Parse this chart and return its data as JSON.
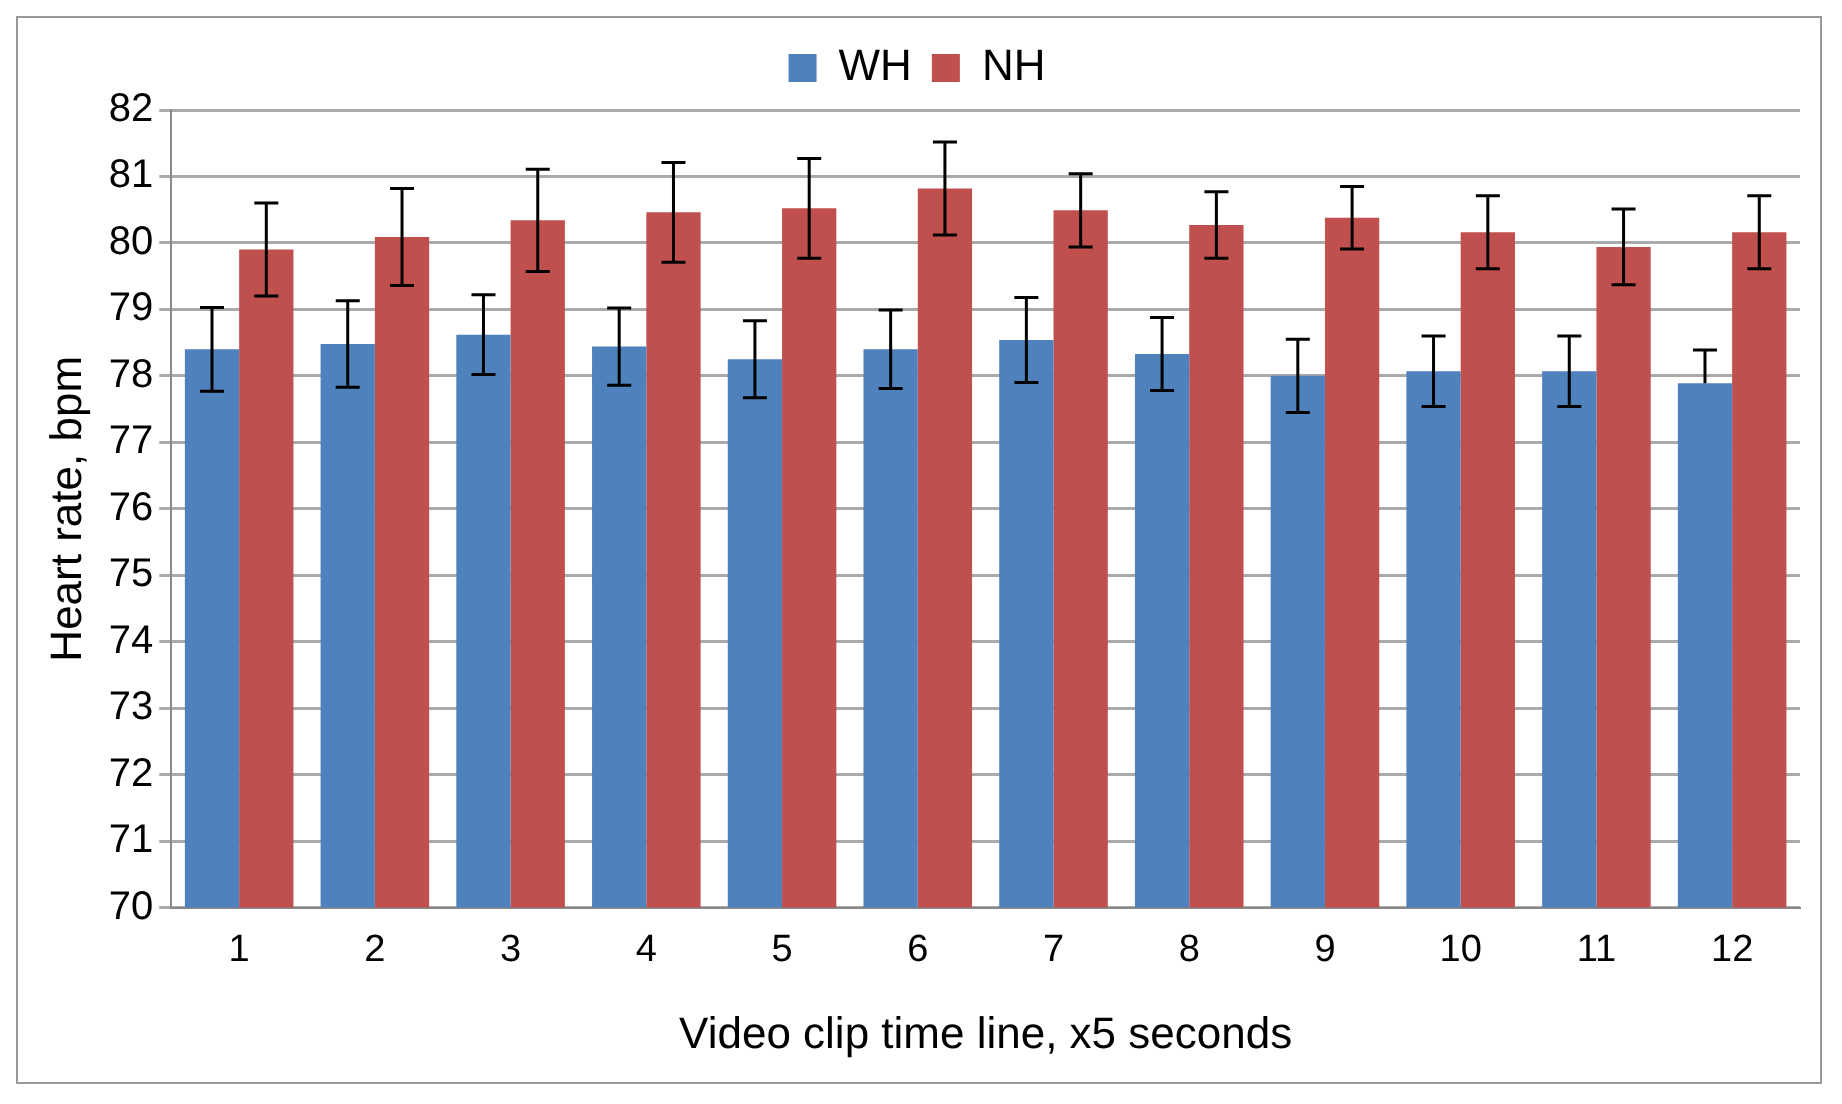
{
  "chart_data": {
    "type": "bar",
    "xlabel": "Video clip time line, x5 seconds",
    "ylabel": "Heart rate, bpm",
    "categories": [
      "1",
      "2",
      "3",
      "4",
      "5",
      "6",
      "7",
      "8",
      "9",
      "10",
      "11",
      "12"
    ],
    "series": [
      {
        "name": "WH",
        "color": "#4f81bd",
        "values": [
          78.4,
          78.48,
          78.62,
          78.44,
          78.25,
          78.4,
          78.54,
          78.33,
          78.0,
          78.07,
          78.07,
          77.89
        ],
        "errors": [
          0.63,
          0.65,
          0.6,
          0.58,
          0.58,
          0.59,
          0.64,
          0.55,
          0.55,
          0.53,
          0.53,
          [
            77.89,
            78.39
          ]
        ]
      },
      {
        "name": "NH",
        "color": "#c0504d",
        "values": [
          79.9,
          80.09,
          80.34,
          80.46,
          80.52,
          80.82,
          80.49,
          80.27,
          80.38,
          80.16,
          79.94,
          80.16
        ],
        "errors": [
          0.7,
          0.73,
          0.77,
          0.75,
          0.75,
          0.7,
          0.55,
          0.5,
          0.47,
          0.55,
          0.57,
          0.55
        ]
      }
    ],
    "ylim": [
      70,
      82
    ],
    "yticks": [
      70,
      71,
      72,
      73,
      74,
      75,
      76,
      77,
      78,
      79,
      80,
      81,
      82
    ],
    "grid": "y",
    "legend": "top"
  }
}
